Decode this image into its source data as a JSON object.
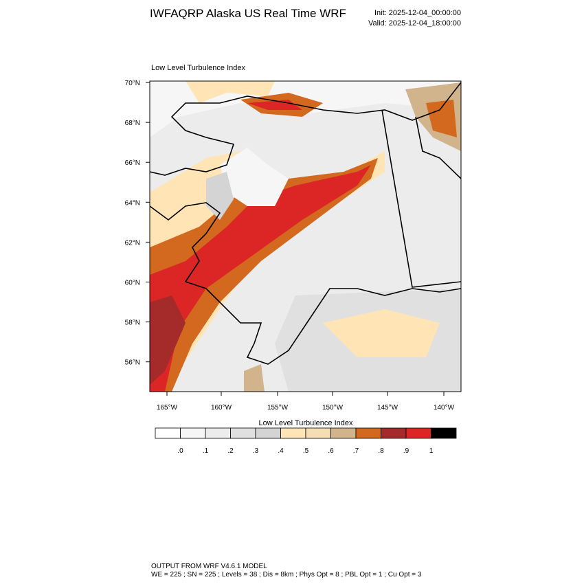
{
  "header": {
    "title": "IWFAQRP Alaska US Real Time WRF",
    "init": "Init: 2025-12-04_00:00:00",
    "valid": "Valid: 2025-12-04_18:00:00"
  },
  "map": {
    "title": "Low Level Turbulence Index",
    "lat_labels": [
      "70°N",
      "68°N",
      "66°N",
      "64°N",
      "62°N",
      "60°N",
      "58°N",
      "56°N"
    ],
    "lon_labels": [
      "165°W",
      "160°W",
      "155°W",
      "150°W",
      "145°W",
      "140°W"
    ]
  },
  "colorbar": {
    "title": "Low Level Turbulence Index",
    "colors": [
      "#ffffff",
      "#f6f6f6",
      "#ececec",
      "#e0e0e0",
      "#d4d4d4",
      "#ffe4b5",
      "#f5deb3",
      "#d2b48c",
      "#d2691e",
      "#a52a2a",
      "#dc2626",
      "#000000"
    ],
    "labels": [
      ".0",
      ".1",
      ".2",
      ".3",
      ".4",
      ".5",
      ".6",
      ".7",
      ".8",
      ".9",
      "1"
    ]
  },
  "footer": {
    "lines": [
      "OUTPUT FROM WRF V4.6.1 MODEL",
      "WE = 225 ; SN = 225 ; Levels = 38 ; Dis = 8km ; Phys Opt = 8 ; PBL Opt = 1 ; Cu Opt = 3"
    ]
  }
}
